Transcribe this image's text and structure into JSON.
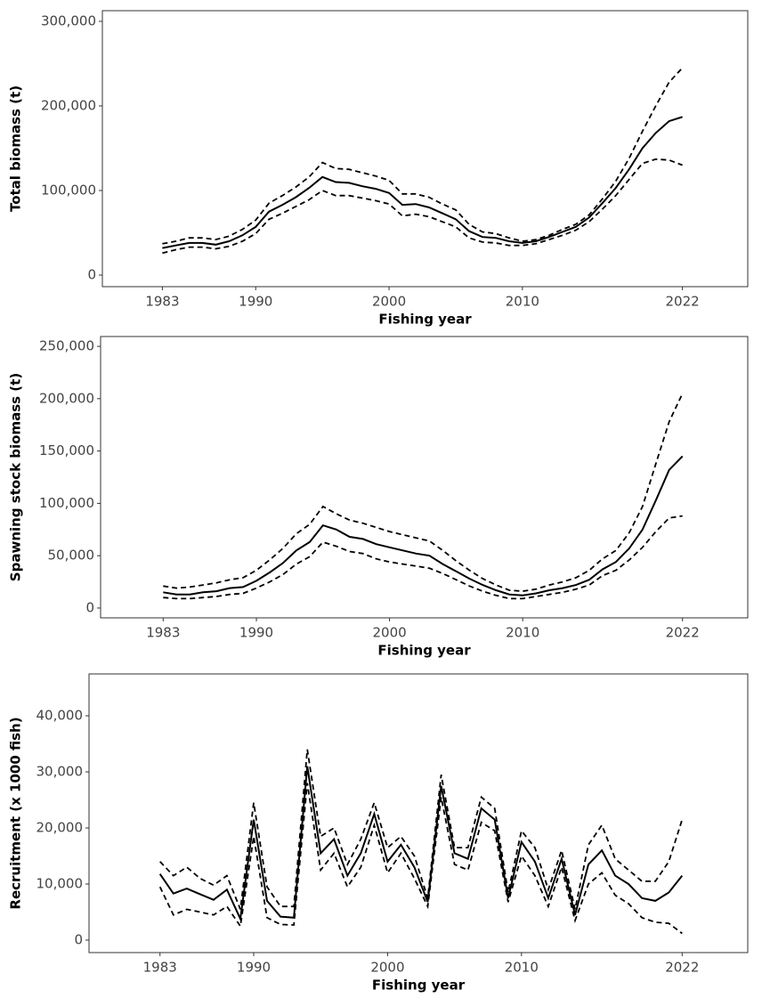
{
  "chart_data": [
    {
      "type": "line",
      "xlabel": "Fishing year",
      "ylabel": "Total biomass (t)",
      "x": [
        1983,
        1984,
        1985,
        1986,
        1987,
        1988,
        1989,
        1990,
        1991,
        1992,
        1993,
        1994,
        1995,
        1996,
        1997,
        1998,
        1999,
        2000,
        2001,
        2002,
        2003,
        2004,
        2005,
        2006,
        2007,
        2008,
        2009,
        2010,
        2011,
        2012,
        2013,
        2014,
        2015,
        2016,
        2017,
        2018,
        2019,
        2020,
        2021,
        2022
      ],
      "series": [
        {
          "color": "#000000",
          "style": "solid",
          "values": [
            32000,
            35000,
            38000,
            38000,
            36000,
            40000,
            47000,
            57000,
            75000,
            83000,
            92000,
            103000,
            116000,
            110000,
            109000,
            105000,
            102000,
            97000,
            83000,
            84000,
            80000,
            73000,
            66000,
            52000,
            45000,
            44000,
            40000,
            38000,
            40000,
            45000,
            51000,
            57000,
            68000,
            85000,
            103000,
            125000,
            150000,
            168000,
            182000,
            187000
          ]
        },
        {
          "color": "#000000",
          "style": "dashed",
          "values": [
            37000,
            40000,
            44000,
            44000,
            42000,
            46000,
            54000,
            65000,
            85000,
            94000,
            104000,
            116000,
            133000,
            126000,
            125000,
            121000,
            117000,
            112000,
            96000,
            96000,
            92000,
            84000,
            77000,
            60000,
            51000,
            49000,
            44000,
            40000,
            42000,
            47000,
            54000,
            60000,
            71000,
            90000,
            111000,
            138000,
            170000,
            200000,
            228000,
            245000
          ]
        },
        {
          "color": "#000000",
          "style": "dashed",
          "values": [
            26000,
            30000,
            33000,
            33000,
            31000,
            34000,
            40000,
            49000,
            66000,
            73000,
            81000,
            89000,
            100000,
            94000,
            94000,
            91000,
            88000,
            84000,
            70000,
            72000,
            69000,
            63000,
            57000,
            44000,
            39000,
            38000,
            35000,
            35000,
            37000,
            42000,
            47000,
            53000,
            63000,
            78000,
            94000,
            113000,
            132000,
            137000,
            136000,
            130000
          ]
        }
      ],
      "xlim": [
        1978.5,
        2026.9
      ],
      "ylim": [
        -13700,
        312600
      ],
      "xticks": [
        1983,
        1990,
        2000,
        2010,
        2022
      ],
      "yticks": [
        0,
        {
          "value": 100000,
          "label": "100,000"
        },
        {
          "value": 200000,
          "label": "200,000"
        },
        {
          "value": 300000,
          "label": "300,000"
        }
      ]
    },
    {
      "type": "line",
      "xlabel": "Fishing year",
      "ylabel": "Spawning stock biomass (t)",
      "x": [
        1983,
        1984,
        1985,
        1986,
        1987,
        1988,
        1989,
        1990,
        1991,
        1992,
        1993,
        1994,
        1995,
        1996,
        1997,
        1998,
        1999,
        2000,
        2001,
        2002,
        2003,
        2004,
        2005,
        2006,
        2007,
        2008,
        2009,
        2010,
        2011,
        2012,
        2013,
        2014,
        2015,
        2016,
        2017,
        2018,
        2019,
        2020,
        2021,
        2022
      ],
      "series": [
        {
          "color": "#000000",
          "style": "solid",
          "values": [
            15000,
            13000,
            13000,
            15000,
            16000,
            19000,
            20000,
            26000,
            34000,
            43000,
            55000,
            63000,
            79000,
            75000,
            68000,
            66000,
            61000,
            58000,
            55000,
            52000,
            50000,
            42000,
            35000,
            28000,
            22000,
            17000,
            13000,
            12000,
            14000,
            17000,
            19000,
            22000,
            27000,
            37000,
            44000,
            57000,
            75000,
            103000,
            132000,
            145000
          ]
        },
        {
          "color": "#000000",
          "style": "dashed",
          "values": [
            21000,
            19000,
            20000,
            22000,
            24000,
            27000,
            29000,
            36000,
            46000,
            57000,
            71000,
            80000,
            97000,
            90000,
            84000,
            81000,
            77000,
            73000,
            70000,
            67000,
            64000,
            55000,
            45000,
            36000,
            28000,
            22000,
            17000,
            16000,
            18000,
            22000,
            25000,
            29000,
            36000,
            47000,
            55000,
            72000,
            97000,
            138000,
            178000,
            205000
          ]
        },
        {
          "color": "#000000",
          "style": "dashed",
          "values": [
            10000,
            9000,
            9000,
            10000,
            11000,
            13000,
            14000,
            19000,
            25000,
            32000,
            42000,
            49000,
            63000,
            59000,
            54000,
            52000,
            47000,
            44000,
            42000,
            40000,
            38000,
            33000,
            27000,
            21000,
            16000,
            12000,
            9000,
            9000,
            11000,
            13000,
            15000,
            18000,
            22000,
            31000,
            36000,
            46000,
            58000,
            73000,
            86000,
            88000
          ]
        }
      ],
      "xlim": [
        1978.3,
        2026.9
      ],
      "ylim": [
        -9400,
        259400
      ],
      "xticks": [
        1983,
        1990,
        2000,
        2010,
        2022
      ],
      "yticks": [
        0,
        {
          "value": 50000,
          "label": "50,000"
        },
        {
          "value": 100000,
          "label": "100,000"
        },
        {
          "value": 150000,
          "label": "150,000"
        },
        {
          "value": 200000,
          "label": "200,000"
        },
        {
          "value": 250000,
          "label": "250,000"
        }
      ]
    },
    {
      "type": "line",
      "xlabel": "Fishing year",
      "ylabel": "Recruitment (x 1000 fish)",
      "x": [
        1983,
        1984,
        1985,
        1986,
        1987,
        1988,
        1989,
        1990,
        1991,
        1992,
        1993,
        1994,
        1995,
        1996,
        1997,
        1998,
        1999,
        2000,
        2001,
        2002,
        2003,
        2004,
        2005,
        2006,
        2007,
        2008,
        2009,
        2010,
        2011,
        2012,
        2013,
        2014,
        2015,
        2016,
        2017,
        2018,
        2019,
        2020,
        2021,
        2022
      ],
      "series": [
        {
          "color": "#000000",
          "style": "solid",
          "values": [
            11800,
            8300,
            9200,
            8200,
            7200,
            9000,
            3800,
            21500,
            7000,
            4200,
            4000,
            31000,
            15500,
            18000,
            11500,
            15500,
            22500,
            14000,
            17000,
            13000,
            6800,
            27500,
            15500,
            14500,
            23500,
            21500,
            7500,
            17500,
            14000,
            7500,
            14500,
            4500,
            13500,
            16000,
            11500,
            10000,
            7500,
            7000,
            8500,
            11500
          ]
        },
        {
          "color": "#000000",
          "style": "dashed",
          "values": [
            14000,
            11500,
            13000,
            11000,
            9800,
            11500,
            5500,
            24500,
            9500,
            6000,
            6000,
            34000,
            18500,
            20000,
            13500,
            18000,
            24500,
            16500,
            18500,
            15000,
            7500,
            29500,
            16500,
            16500,
            25500,
            23500,
            8500,
            19500,
            16500,
            9000,
            16000,
            5500,
            17000,
            20500,
            14500,
            12500,
            10500,
            10500,
            14000,
            21500
          ]
        },
        {
          "color": "#000000",
          "style": "dashed",
          "values": [
            9500,
            4500,
            5500,
            5000,
            4500,
            6000,
            2500,
            18500,
            4000,
            2800,
            2700,
            28000,
            12500,
            15500,
            9500,
            13000,
            20500,
            12000,
            15500,
            11000,
            6000,
            25500,
            13500,
            12500,
            21000,
            19500,
            6800,
            15000,
            11500,
            6000,
            13000,
            3500,
            10000,
            12000,
            8000,
            6500,
            4000,
            3200,
            3000,
            1200
          ]
        }
      ],
      "xlim": [
        1977.7,
        2026.9
      ],
      "ylim": [
        -2220,
        47460
      ],
      "xticks": [
        1983,
        1990,
        2000,
        2010,
        2022
      ],
      "yticks": [
        0,
        {
          "value": 10000,
          "label": "10,000"
        },
        {
          "value": 20000,
          "label": "20,000"
        },
        {
          "value": 30000,
          "label": "30,000"
        },
        {
          "value": 40000,
          "label": "40,000"
        }
      ]
    }
  ]
}
